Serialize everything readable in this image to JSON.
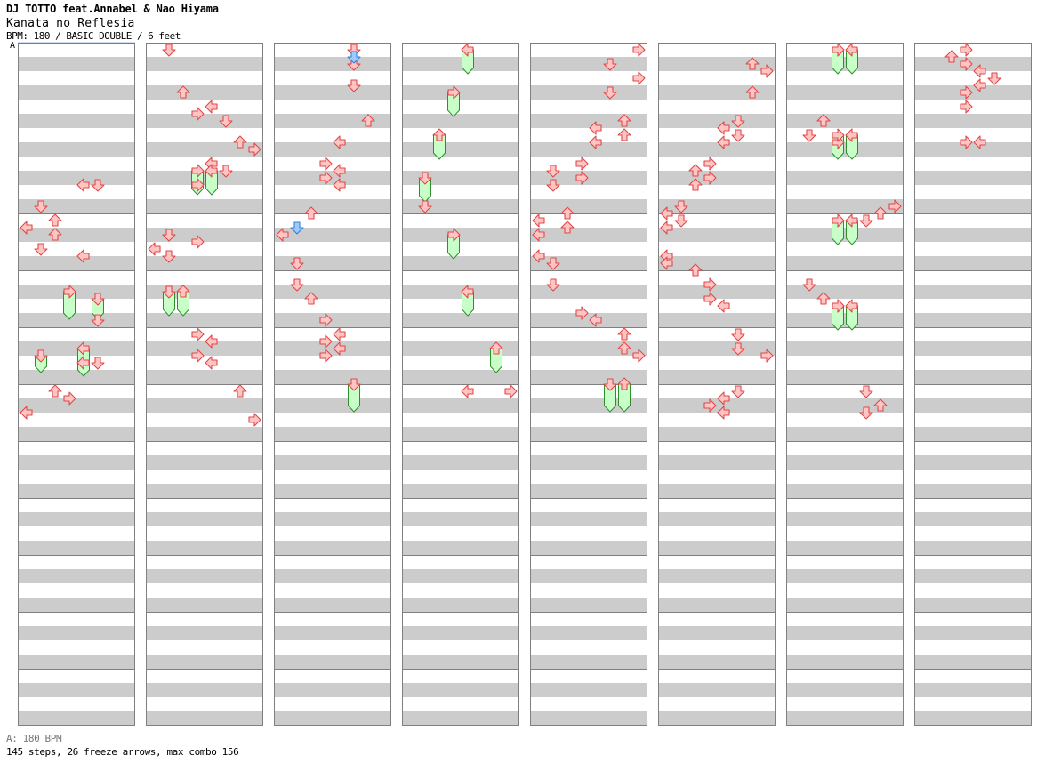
{
  "header": {
    "artist": "DJ TOTTO feat.Annabel & Nao Hiyama",
    "title": "Kanata no Reflesia",
    "info": "BPM: 180 / BASIC DOUBLE / 6 feet"
  },
  "bpm_marker": {
    "label": "A"
  },
  "footer": {
    "legend": "A: 180 BPM",
    "stats": "145 steps, 26 freeze arrows, max combo 156"
  },
  "colors": {
    "stripe": "#cccccc",
    "measure_line": "#808080",
    "border": "#808080",
    "arrow_fill": "#ffc4c4",
    "arrow_stroke": "#e04848",
    "blue_fill": "#9ccaff",
    "blue_stroke": "#3a7fd0",
    "freeze_fill": "#c8ffc8",
    "freeze_stroke": "#2f8f2f",
    "bpm_line": "#4f7fd8"
  },
  "chart_data": {
    "type": "step-chart",
    "bpm": 180,
    "style": "BASIC DOUBLE",
    "difficulty_feet": 6,
    "columns": 8,
    "measures_per_column": 12,
    "lanes": [
      "P1-left",
      "P1-down",
      "P1-up",
      "P1-right",
      "P2-left",
      "P2-down",
      "P2-up",
      "P2-right"
    ],
    "arrows": [
      [
        0,
        10.0,
        4
      ],
      [
        0,
        10.0,
        5
      ],
      [
        0,
        11.5,
        1
      ],
      [
        0,
        12.5,
        2
      ],
      [
        0,
        13.0,
        0
      ],
      [
        0,
        13.5,
        2
      ],
      [
        0,
        14.5,
        1
      ],
      [
        0,
        15.0,
        4
      ],
      [
        0,
        19.5,
        5
      ],
      [
        0,
        22.5,
        4
      ],
      [
        0,
        22.5,
        5
      ],
      [
        0,
        24.5,
        2
      ],
      [
        0,
        25.0,
        3
      ],
      [
        0,
        26.0,
        0
      ],
      [
        1,
        0.5,
        1
      ],
      [
        1,
        3.5,
        2
      ],
      [
        1,
        4.5,
        4
      ],
      [
        1,
        5.0,
        3
      ],
      [
        1,
        5.5,
        5
      ],
      [
        1,
        7.0,
        6
      ],
      [
        1,
        7.5,
        7
      ],
      [
        1,
        8.5,
        4
      ],
      [
        1,
        9.0,
        5
      ],
      [
        1,
        10.0,
        3
      ],
      [
        1,
        13.5,
        1
      ],
      [
        1,
        14.0,
        3
      ],
      [
        1,
        14.5,
        0
      ],
      [
        1,
        15.0,
        1
      ],
      [
        1,
        20.5,
        3
      ],
      [
        1,
        21.0,
        4
      ],
      [
        1,
        22.0,
        3
      ],
      [
        1,
        22.5,
        4
      ],
      [
        1,
        24.5,
        6
      ],
      [
        1,
        26.5,
        7
      ],
      [
        2,
        0.5,
        5
      ],
      [
        2,
        1.5,
        5
      ],
      [
        2,
        3.0,
        5
      ],
      [
        2,
        5.5,
        6
      ],
      [
        2,
        7.0,
        4
      ],
      [
        2,
        8.5,
        3
      ],
      [
        2,
        9.0,
        4
      ],
      [
        2,
        9.5,
        3
      ],
      [
        2,
        10.0,
        4
      ],
      [
        2,
        12.0,
        2
      ],
      [
        2,
        13.5,
        0
      ],
      [
        2,
        15.5,
        1
      ],
      [
        2,
        17.0,
        1
      ],
      [
        2,
        18.0,
        2
      ],
      [
        2,
        19.5,
        3
      ],
      [
        2,
        20.5,
        4
      ],
      [
        2,
        21.0,
        3
      ],
      [
        2,
        21.5,
        4
      ],
      [
        2,
        22.0,
        3
      ],
      [
        3,
        11.5,
        1
      ],
      [
        3,
        24.5,
        4
      ],
      [
        3,
        24.5,
        7
      ],
      [
        4,
        0.5,
        7
      ],
      [
        4,
        1.5,
        5
      ],
      [
        4,
        2.5,
        7
      ],
      [
        4,
        3.5,
        5
      ],
      [
        4,
        5.5,
        6
      ],
      [
        4,
        6.0,
        4
      ],
      [
        4,
        6.5,
        6
      ],
      [
        4,
        7.0,
        4
      ],
      [
        4,
        8.5,
        3
      ],
      [
        4,
        9.0,
        1
      ],
      [
        4,
        9.5,
        3
      ],
      [
        4,
        10.0,
        1
      ],
      [
        4,
        12.0,
        2
      ],
      [
        4,
        12.5,
        0
      ],
      [
        4,
        13.0,
        2
      ],
      [
        4,
        13.5,
        0
      ],
      [
        4,
        15.0,
        0
      ],
      [
        4,
        15.5,
        1
      ],
      [
        4,
        17.0,
        1
      ],
      [
        4,
        19.0,
        3
      ],
      [
        4,
        19.5,
        4
      ],
      [
        4,
        20.5,
        6
      ],
      [
        4,
        21.5,
        6
      ],
      [
        4,
        22.0,
        7
      ],
      [
        5,
        1.5,
        6
      ],
      [
        5,
        2.0,
        7
      ],
      [
        5,
        3.5,
        6
      ],
      [
        5,
        5.5,
        5
      ],
      [
        5,
        6.0,
        4
      ],
      [
        5,
        6.5,
        5
      ],
      [
        5,
        7.0,
        4
      ],
      [
        5,
        8.5,
        3
      ],
      [
        5,
        9.0,
        2
      ],
      [
        5,
        9.5,
        3
      ],
      [
        5,
        10.0,
        2
      ],
      [
        5,
        11.5,
        1
      ],
      [
        5,
        12.0,
        0
      ],
      [
        5,
        12.5,
        1
      ],
      [
        5,
        13.0,
        0
      ],
      [
        5,
        15.0,
        0
      ],
      [
        5,
        15.5,
        0
      ],
      [
        5,
        16.0,
        2
      ],
      [
        5,
        17.0,
        3
      ],
      [
        5,
        18.0,
        3
      ],
      [
        5,
        18.5,
        4
      ],
      [
        5,
        20.5,
        5
      ],
      [
        5,
        21.5,
        5
      ],
      [
        5,
        22.0,
        7
      ],
      [
        5,
        24.5,
        5
      ],
      [
        5,
        25.0,
        4
      ],
      [
        5,
        25.5,
        3
      ],
      [
        5,
        26.0,
        4
      ],
      [
        6,
        5.5,
        2
      ],
      [
        6,
        6.5,
        1
      ],
      [
        6,
        7.0,
        3
      ],
      [
        6,
        11.5,
        7
      ],
      [
        6,
        12.0,
        6
      ],
      [
        6,
        12.5,
        5
      ],
      [
        6,
        17.0,
        1
      ],
      [
        6,
        18.0,
        2
      ],
      [
        6,
        18.5,
        3
      ],
      [
        6,
        24.5,
        5
      ],
      [
        6,
        25.5,
        6
      ],
      [
        6,
        26.0,
        5
      ],
      [
        7,
        0.5,
        3
      ],
      [
        7,
        1.0,
        2
      ],
      [
        7,
        1.5,
        3
      ],
      [
        7,
        2.0,
        4
      ],
      [
        7,
        2.5,
        5
      ],
      [
        7,
        3.0,
        4
      ],
      [
        7,
        3.5,
        3
      ],
      [
        7,
        4.5,
        3
      ],
      [
        7,
        7.0,
        3
      ],
      [
        7,
        7.0,
        4
      ]
    ],
    "blue_arrows": [
      [
        2,
        1.0,
        5
      ],
      [
        2,
        13.0,
        1
      ]
    ],
    "freezes": [
      [
        0,
        17.5,
        19.25,
        3
      ],
      [
        0,
        18.0,
        19.25,
        5
      ],
      [
        0,
        21.5,
        23.25,
        4
      ],
      [
        0,
        22.0,
        23.0,
        1
      ],
      [
        1,
        9.0,
        10.5,
        3
      ],
      [
        1,
        9.0,
        10.5,
        4
      ],
      [
        1,
        17.5,
        19.0,
        1
      ],
      [
        1,
        17.5,
        19.0,
        2
      ],
      [
        2,
        24.0,
        25.75,
        5
      ],
      [
        3,
        0.5,
        2.0,
        4
      ],
      [
        3,
        3.5,
        5.0,
        3
      ],
      [
        3,
        6.5,
        8.0,
        2
      ],
      [
        3,
        9.5,
        11.0,
        1
      ],
      [
        3,
        13.5,
        15.0,
        3
      ],
      [
        3,
        17.5,
        19.0,
        4
      ],
      [
        3,
        21.5,
        23.0,
        6
      ],
      [
        4,
        24.0,
        25.75,
        5
      ],
      [
        4,
        24.0,
        25.75,
        6
      ],
      [
        6,
        0.5,
        2.0,
        3
      ],
      [
        6,
        0.5,
        2.0,
        4
      ],
      [
        6,
        6.5,
        8.0,
        3
      ],
      [
        6,
        6.5,
        8.0,
        4
      ],
      [
        6,
        12.5,
        14.0,
        3
      ],
      [
        6,
        12.5,
        14.0,
        4
      ],
      [
        6,
        18.5,
        20.0,
        3
      ],
      [
        6,
        18.5,
        20.0,
        4
      ]
    ]
  }
}
